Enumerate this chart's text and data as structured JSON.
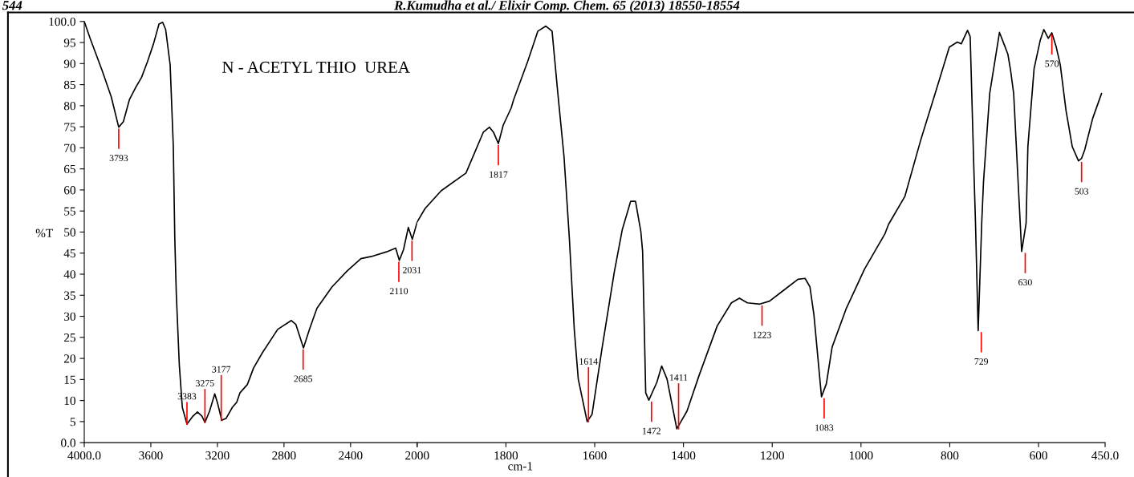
{
  "chart_data": [
    {
      "type": "line",
      "title": "N - ACETYL THIO  UREA",
      "ylabel": "%T",
      "xlim": [
        4000,
        2000
      ],
      "ylim": [
        0,
        100
      ],
      "xticks": [
        {
          "value": 4000,
          "label": "4000.0"
        },
        3600,
        3200,
        2800,
        2400,
        2000
      ],
      "yticks": [
        {
          "value": 0,
          "label": "0.0"
        },
        5,
        10,
        15,
        20,
        25,
        30,
        35,
        40,
        45,
        50,
        55,
        60,
        65,
        70,
        75,
        80,
        85,
        90,
        95,
        {
          "value": 100,
          "label": "100.0"
        }
      ],
      "marker": "none",
      "line_style": "solid",
      "grid": false,
      "series": [
        {
          "color": "#000000",
          "x": [
            4000,
            3965,
            3893,
            3838,
            3793,
            3765,
            3729,
            3693,
            3656,
            3620,
            3584,
            3551,
            3529,
            3511,
            3484,
            3465,
            3456,
            3447,
            3429,
            3411,
            3383,
            3347,
            3320,
            3293,
            3275,
            3247,
            3216,
            3198,
            3174,
            3147,
            3110,
            3084,
            3065,
            3020,
            2983,
            2929,
            2838,
            2756,
            2729,
            2683,
            2647,
            2602,
            2511,
            2420,
            2338,
            2275,
            2184,
            2129,
            2107,
            2082,
            2053,
            2029,
            2002,
            2000
          ],
          "values": [
            100.0,
            96.0,
            88.4,
            82.1,
            74.9,
            76.2,
            81.4,
            84.2,
            86.7,
            90.5,
            94.7,
            99.4,
            99.8,
            98.1,
            89.7,
            70.3,
            48.4,
            35.3,
            18.5,
            8.4,
            4.4,
            6.3,
            7.3,
            6.3,
            4.8,
            7.5,
            11.6,
            9.2,
            5.3,
            5.8,
            8.4,
            9.6,
            11.8,
            13.8,
            17.7,
            21.4,
            26.9,
            29.0,
            28.1,
            22.5,
            26.9,
            31.9,
            37.0,
            40.8,
            43.7,
            44.2,
            45.3,
            46.2,
            43.3,
            45.8,
            51.1,
            48.3,
            52.1,
            52.4
          ]
        }
      ],
      "annotations": [
        {
          "text": "3793",
          "x": 3793,
          "y": 74.9
        },
        {
          "text": "3383",
          "x": 3383,
          "y": 4.4
        },
        {
          "text": "3275",
          "x": 3275,
          "y": 4.8
        },
        {
          "text": "3177",
          "x": 3177,
          "y": 5.3
        },
        {
          "text": "2685",
          "x": 2685,
          "y": 22.5
        },
        {
          "text": "2110",
          "x": 2110,
          "y": 43.3
        },
        {
          "text": "2031",
          "x": 2031,
          "y": 48.3
        },
        "544",
        "R.Kumudha et al./ Elixir Comp. Chem. 65 (2013) 18550-18554"
      ]
    },
    {
      "type": "line",
      "xlabel": "cm-1",
      "tick_labels": "x",
      "xlim": [
        2000,
        450
      ],
      "ylim": [
        0,
        100
      ],
      "xticks": [
        {
          "value": 2000,
          "label": null
        },
        1800,
        1600,
        1400,
        1200,
        1000,
        800,
        600,
        {
          "value": 450,
          "label": "450.0"
        }
      ],
      "marker": "none",
      "line_style": "solid",
      "grid": false,
      "series": [
        {
          "color": "#000000",
          "x": [
            2000,
            1982,
            1946,
            1890,
            1851,
            1837,
            1828,
            1817,
            1806,
            1788,
            1783,
            1751,
            1728,
            1710,
            1696,
            1683,
            1669,
            1657,
            1646,
            1637,
            1617,
            1606,
            1583,
            1556,
            1538,
            1519,
            1508,
            1496,
            1492,
            1485,
            1478,
            1460,
            1449,
            1437,
            1415,
            1392,
            1365,
            1324,
            1292,
            1274,
            1256,
            1228,
            1206,
            1174,
            1142,
            1126,
            1115,
            1106,
            1089,
            1078,
            1065,
            1033,
            992,
            946,
            938,
            901,
            865,
            828,
            801,
            783,
            774,
            760,
            754,
            746,
            742,
            736,
            728,
            724,
            710,
            688,
            678,
            669,
            663,
            656,
            646,
            638,
            628,
            624,
            610,
            596,
            588,
            578,
            570,
            560,
            551,
            538,
            524,
            510,
            503,
            496,
            478,
            458
          ],
          "values": [
            52.4,
            55.6,
            59.8,
            64.0,
            73.7,
            74.9,
            73.7,
            71.0,
            75.4,
            79.5,
            81.3,
            90.5,
            97.7,
            98.9,
            97.7,
            82.9,
            67.8,
            48.4,
            26.9,
            15.1,
            5.0,
            6.7,
            22.7,
            40.4,
            50.5,
            57.3,
            57.3,
            50.1,
            45.4,
            11.8,
            10.1,
            14.3,
            18.2,
            15.1,
            3.3,
            7.5,
            15.9,
            27.7,
            33.2,
            34.3,
            33.2,
            32.9,
            33.6,
            36.2,
            38.8,
            39.0,
            37.0,
            30.3,
            10.9,
            14.0,
            22.7,
            31.9,
            41.2,
            49.6,
            51.8,
            58.5,
            72.0,
            84.6,
            93.9,
            95.1,
            94.7,
            97.9,
            96.4,
            66.1,
            52.1,
            26.6,
            52.1,
            61.9,
            82.9,
            97.4,
            94.7,
            92.2,
            88.4,
            82.9,
            61.9,
            45.4,
            52.1,
            70.3,
            88.8,
            95.6,
            98.1,
            96.0,
            97.3,
            93.9,
            89.7,
            78.8,
            70.3,
            66.9,
            67.5,
            69.5,
            77.0,
            82.9
          ]
        }
      ],
      "annotations": [
        {
          "text": "1817",
          "x": 1817,
          "y": 71.0
        },
        {
          "text": "1614",
          "x": 1614,
          "y": 5.0
        },
        {
          "text": "1472",
          "x": 1472,
          "y": 10.1
        },
        {
          "text": "1411",
          "x": 1411,
          "y": 3.3
        },
        {
          "text": "1223",
          "x": 1223,
          "y": 32.9
        },
        {
          "text": "1083",
          "x": 1083,
          "y": 10.9
        },
        {
          "text": "729",
          "x": 729,
          "y": 26.6
        },
        {
          "text": "630",
          "x": 630,
          "y": 45.4
        },
        {
          "text": "570",
          "x": 570,
          "y": 97.3
        },
        {
          "text": "503",
          "x": 503,
          "y": 67.0
        }
      ]
    }
  ]
}
